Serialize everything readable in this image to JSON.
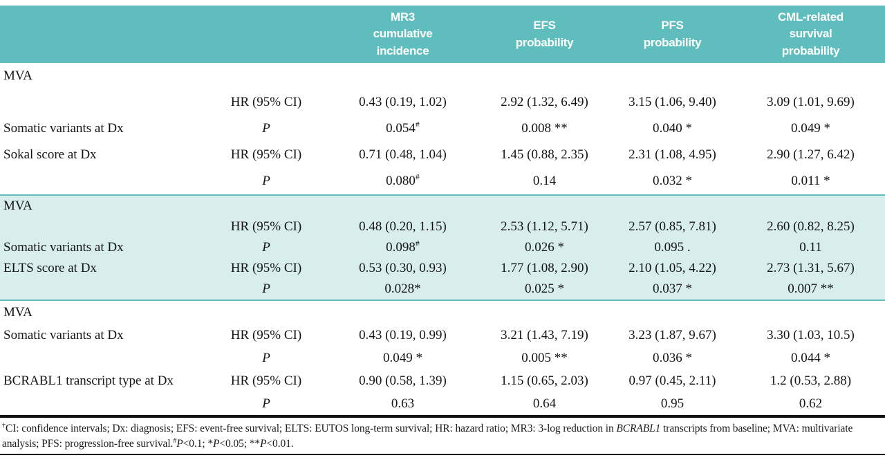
{
  "colors": {
    "header_teal": "#5fbdbd",
    "shaded_band_teal": "#d8eeec",
    "rule_black": "#121212",
    "header_text": "#ffffff"
  },
  "table": {
    "column_headers": [
      {
        "label": ""
      },
      {
        "label": ""
      },
      {
        "label": "MR3\ncumulative\nincidence"
      },
      {
        "label": "EFS\nprobability"
      },
      {
        "label": "PFS\nprobability"
      },
      {
        "label": "CML-related\nsurvival\nprobability"
      }
    ],
    "sections": [
      {
        "group_label": "MVA",
        "shaded": false,
        "rows": [
          {
            "label": "",
            "stat": "HR (95% CI)",
            "values": [
              "0.43 (0.19, 1.02)",
              "2.92 (1.32, 6.49)",
              "3.15 (1.06, 9.40)",
              "3.09 (1.01, 9.69)"
            ]
          },
          {
            "label": "Somatic variants at Dx",
            "stat": "P",
            "values": [
              "0.054#",
              "0.008 **",
              "0.040 *",
              "0.049 *"
            ]
          },
          {
            "label": "Sokal score at Dx",
            "stat": "HR (95% CI)",
            "values": [
              "0.71 (0.48, 1.04)",
              "1.45 (0.88, 2.35)",
              "2.31 (1.08, 4.95)",
              "2.90 (1.27, 6.42)"
            ]
          },
          {
            "label": "",
            "stat": "P",
            "values": [
              "0.080#",
              "0.14",
              "0.032 *",
              "0.011 *"
            ]
          }
        ]
      },
      {
        "group_label": "MVA",
        "shaded": true,
        "rows": [
          {
            "label": "",
            "stat": "HR (95% CI)",
            "values": [
              "0.48 (0.20, 1.15)",
              "2.53 (1.12, 5.71)",
              "2.57 (0.85, 7.81)",
              "2.60 (0.82, 8.25)"
            ]
          },
          {
            "label": "Somatic variants at Dx",
            "stat": "P",
            "values": [
              "0.098#",
              "0.026 *",
              "0.095 .",
              "0.11"
            ]
          },
          {
            "label": "ELTS score at Dx",
            "stat": "HR (95% CI)",
            "values": [
              "0.53 (0.30, 0.93)",
              "1.77 (1.08, 2.90)",
              "2.10 (1.05, 4.22)",
              "2.73 (1.31, 5.67)"
            ]
          },
          {
            "label": "",
            "stat": "P",
            "values": [
              "0.028*",
              "0.025 *",
              "0.037 *",
              "0.007 **"
            ]
          }
        ]
      },
      {
        "group_label": "MVA",
        "shaded": false,
        "rows": [
          {
            "label": "Somatic variants at Dx",
            "stat": "HR (95% CI)",
            "values": [
              "0.43 (0.19, 0.99)",
              "3.21 (1.43, 7.19)",
              "3.23 (1.87, 9.67)",
              "3.30 (1.03, 10.5)"
            ]
          },
          {
            "label": "",
            "stat": "P",
            "values": [
              "0.049 *",
              "0.005 **",
              "0.036 *",
              "0.044 *"
            ]
          },
          {
            "label": "BCRABL1 transcript type at Dx",
            "stat": "HR (95% CI)",
            "values": [
              "0.90 (0.58, 1.39)",
              "1.15 (0.65, 2.03)",
              "0.97 (0.45, 2.11)",
              "1.2 (0.53, 2.88)"
            ]
          },
          {
            "label": "",
            "stat": "P",
            "values": [
              "0.63",
              "0.64",
              "0.95",
              "0.62"
            ]
          }
        ]
      }
    ]
  },
  "footnote": {
    "segments": [
      {
        "text": "†",
        "sup": true
      },
      {
        "text": "CI: confidence intervals; Dx: diagnosis; EFS: event-free survival; ELTS: EUTOS long-term survival; HR: hazard ratio; MR3: 3-log reduction in "
      },
      {
        "text": "BCRABL1",
        "italic": true
      },
      {
        "text": " transcripts from baseline; MVA: multivariate analysis; PFS: progression-free survival."
      },
      {
        "text": "#",
        "sup": true
      },
      {
        "text": "P",
        "italic": true
      },
      {
        "text": "<0.1; *"
      },
      {
        "text": "P",
        "italic": true
      },
      {
        "text": "<0.05; **"
      },
      {
        "text": "P",
        "italic": true
      },
      {
        "text": "<0.01."
      }
    ]
  }
}
